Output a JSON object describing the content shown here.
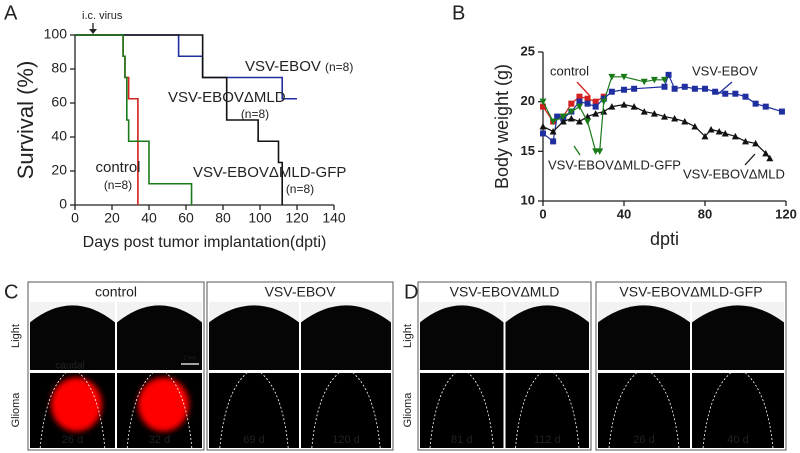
{
  "chart_data": [
    {
      "type": "step",
      "panel": "A",
      "ylabel": "Survival (%)",
      "xlabel": "Days post tumor implantation(dpti)",
      "annotation": "i.c. virus",
      "xlim": [
        0,
        140
      ],
      "xticks": [
        0,
        20,
        40,
        60,
        80,
        100,
        120,
        140
      ],
      "ylim": [
        0,
        100
      ],
      "yticks": [
        0,
        20,
        40,
        60,
        80,
        100
      ],
      "series": [
        {
          "name": "control",
          "note": "(n=8)",
          "color": "#d42020",
          "x": [
            0,
            26,
            27,
            29,
            34
          ],
          "values": [
            100,
            87.5,
            75,
            62.5,
            0
          ]
        },
        {
          "name": "VSV-EBOV",
          "note": "(n=8)",
          "color": "#1f2f9f",
          "x": [
            0,
            56,
            69,
            112,
            120
          ],
          "values": [
            100,
            87.5,
            75,
            62.5,
            62.5
          ]
        },
        {
          "name": "VSV-EBOVΔMLD",
          "note": "(n=8)",
          "color": "#111111",
          "x": [
            0,
            69,
            82,
            99,
            110,
            112
          ],
          "values": [
            100,
            75,
            50,
            37.5,
            25,
            0
          ]
        },
        {
          "name": "VSV-EBOVΔMLD-GFP",
          "note": "(n=8)",
          "color": "#1a7a1a",
          "x": [
            0,
            26,
            27,
            28,
            29,
            40,
            63
          ],
          "values": [
            100,
            87.5,
            75,
            50,
            37.5,
            12.5,
            0
          ]
        }
      ]
    },
    {
      "type": "line",
      "panel": "B",
      "ylabel": "Body weight (g)",
      "xlabel": "dpti",
      "xlim": [
        0,
        120
      ],
      "xticks": [
        0,
        40,
        80,
        120
      ],
      "ylim": [
        10,
        25
      ],
      "yticks": [
        10,
        15,
        20,
        25
      ],
      "series": [
        {
          "name": "control",
          "color": "#d42020",
          "marker": "square",
          "x": [
            0,
            5,
            10,
            14,
            18,
            22,
            26,
            30
          ],
          "values": [
            19.5,
            18.0,
            18.5,
            19.8,
            20.5,
            20.3,
            20.0,
            20.5
          ]
        },
        {
          "name": "VSV-EBOV",
          "color": "#1f2f9f",
          "marker": "square",
          "x": [
            0,
            5,
            7,
            10,
            14,
            18,
            22,
            26,
            30,
            34,
            40,
            45,
            60,
            62,
            65,
            70,
            75,
            80,
            85,
            90,
            95,
            100,
            105,
            110,
            118
          ],
          "values": [
            16.8,
            16.0,
            18.5,
            18.3,
            19.0,
            20.0,
            19.8,
            19.5,
            20.3,
            21.0,
            21.2,
            21.3,
            21.5,
            22.7,
            21.3,
            21.5,
            21.3,
            21.3,
            21.0,
            20.8,
            20.8,
            20.5,
            19.8,
            19.5,
            19.0
          ]
        },
        {
          "name": "VSV-EBOVΔMLD",
          "color": "#111111",
          "marker": "triangle-up",
          "x": [
            0,
            5,
            10,
            14,
            18,
            22,
            26,
            30,
            34,
            40,
            45,
            50,
            55,
            60,
            65,
            70,
            75,
            80,
            83,
            87,
            90,
            95,
            100,
            105,
            110,
            112
          ],
          "values": [
            17.5,
            17.0,
            18.0,
            18.3,
            18.0,
            18.5,
            18.8,
            19.0,
            19.5,
            19.7,
            19.5,
            19.0,
            18.8,
            18.5,
            18.3,
            18.0,
            17.5,
            16.5,
            17.2,
            17.0,
            16.8,
            16.5,
            16.0,
            15.8,
            14.8,
            14.3
          ]
        },
        {
          "name": "VSV-EBOVΔMLD-GFP",
          "color": "#1a7a1a",
          "marker": "triangle-down",
          "x": [
            0,
            5,
            10,
            14,
            18,
            22,
            26,
            28,
            30,
            34,
            40,
            50,
            55,
            60
          ],
          "values": [
            20.0,
            18.0,
            18.5,
            19.0,
            19.5,
            18.0,
            15.0,
            15.0,
            20.0,
            22.5,
            22.5,
            22.0,
            22.2,
            22.2
          ]
        }
      ]
    }
  ],
  "panels": [
    {
      "letter": "C",
      "rows": [
        "Light",
        "Glioma"
      ],
      "orientation": "caudal",
      "scale_bar": "2 mm",
      "groups": [
        {
          "title": "control",
          "signal_color": "#ff0000",
          "images": [
            "26 d",
            "32 d"
          ]
        },
        {
          "title": "VSV-EBOV",
          "images": [
            "69 d",
            "120 d"
          ]
        }
      ]
    },
    {
      "letter": "D",
      "rows": [
        "Light",
        "Glioma"
      ],
      "groups": [
        {
          "title": "VSV-EBOVΔMLD",
          "images": [
            "81 d",
            "112 d"
          ]
        },
        {
          "title": "VSV-EBOVΔMLD-GFP",
          "images": [
            "26 d",
            "40 d"
          ]
        }
      ]
    }
  ]
}
